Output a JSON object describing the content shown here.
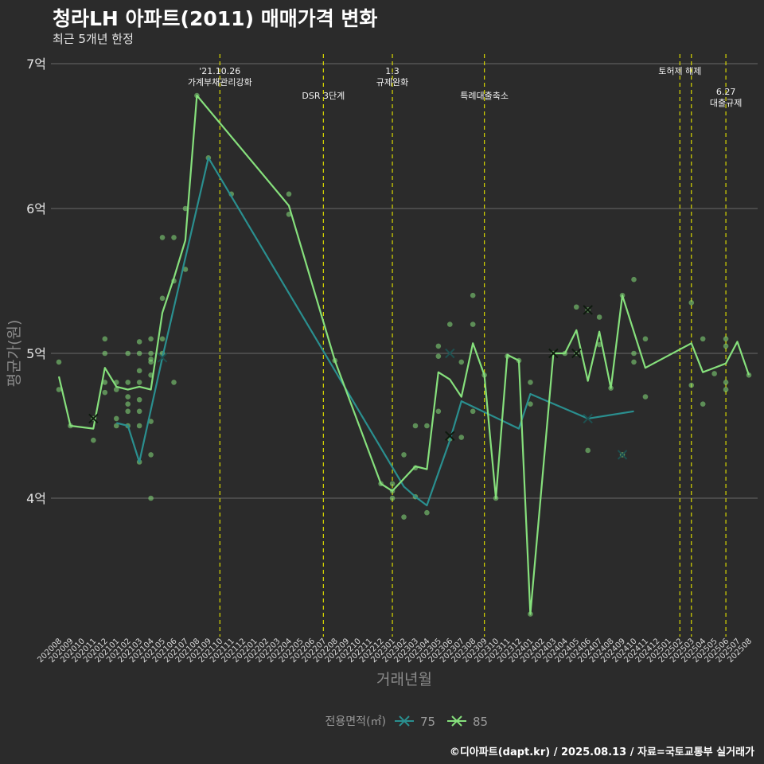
{
  "title": "청라LH 아파트(2011) 매매가격 변화",
  "subtitle": "최근 5개년 한정",
  "caption": "©디아파트(dapt.kr) / 2025.08.13 / 자료=국토교통부 실거래가",
  "colors": {
    "background": "#2b2b2b",
    "grid": "#6a6a6a",
    "event_line": "#d8d800",
    "series_75": "#2a8f8f",
    "series_85": "#86e07c"
  },
  "chart_data": {
    "type": "line",
    "xlabel": "거래년월",
    "ylabel": "평균가(원)",
    "yticks": [
      {
        "value": 4,
        "label": "4억"
      },
      {
        "value": 5,
        "label": "5억"
      },
      {
        "value": 6,
        "label": "6억"
      },
      {
        "value": 7,
        "label": "7억"
      }
    ],
    "ylim": [
      3.1,
      7.05
    ],
    "ytick_unit": "억",
    "x": [
      "202008",
      "202009",
      "202010",
      "202011",
      "202012",
      "202101",
      "202102",
      "202103",
      "202104",
      "202105",
      "202106",
      "202107",
      "202108",
      "202109",
      "202110",
      "202111",
      "202112",
      "202201",
      "202202",
      "202203",
      "202204",
      "202205",
      "202206",
      "202207",
      "202208",
      "202209",
      "202210",
      "202211",
      "202212",
      "202301",
      "202302",
      "202303",
      "202304",
      "202305",
      "202306",
      "202307",
      "202308",
      "202309",
      "202310",
      "202311",
      "202312",
      "202401",
      "202402",
      "202403",
      "202404",
      "202405",
      "202406",
      "202407",
      "202408",
      "202409",
      "202410",
      "202411",
      "202412",
      "202501",
      "202502",
      "202503",
      "202504",
      "202505",
      "202506",
      "202507",
      "202508"
    ],
    "legend": {
      "title": "전용면적(㎡)",
      "position": "bottom"
    },
    "series": [
      {
        "name": "75",
        "color": "#2a8f8f",
        "points": [
          [
            "202101",
            4.52
          ],
          [
            "202102",
            4.5
          ],
          [
            "202103",
            4.25
          ],
          [
            "202105",
            4.97
          ],
          [
            "202109",
            6.35
          ],
          [
            "202302",
            4.08
          ],
          [
            "202303",
            4.01
          ],
          [
            "202304",
            3.95
          ],
          [
            "202306",
            4.4
          ],
          [
            "202307",
            4.67
          ],
          [
            "202312",
            4.48
          ],
          [
            "202401",
            4.72
          ],
          [
            "202406",
            4.55
          ],
          [
            "202410",
            4.6
          ]
        ]
      },
      {
        "name": "85",
        "color": "#86e07c",
        "points": [
          [
            "202008",
            4.84
          ],
          [
            "202009",
            4.5
          ],
          [
            "202011",
            4.48
          ],
          [
            "202012",
            4.9
          ],
          [
            "202101",
            4.77
          ],
          [
            "202102",
            4.75
          ],
          [
            "202103",
            4.77
          ],
          [
            "202104",
            4.75
          ],
          [
            "202105",
            5.28
          ],
          [
            "202106",
            5.52
          ],
          [
            "202107",
            5.78
          ],
          [
            "202108",
            6.78
          ],
          [
            "202204",
            6.02
          ],
          [
            "202208",
            4.95
          ],
          [
            "202212",
            4.1
          ],
          [
            "202301",
            4.05
          ],
          [
            "202303",
            4.22
          ],
          [
            "202304",
            4.2
          ],
          [
            "202305",
            4.87
          ],
          [
            "202306",
            4.82
          ],
          [
            "202307",
            4.7
          ],
          [
            "202308",
            5.07
          ],
          [
            "202309",
            4.85
          ],
          [
            "202310",
            4.0
          ],
          [
            "202311",
            4.99
          ],
          [
            "202312",
            4.95
          ],
          [
            "202401",
            3.2
          ],
          [
            "202403",
            5.0
          ],
          [
            "202404",
            5.0
          ],
          [
            "202405",
            5.16
          ],
          [
            "202406",
            4.81
          ],
          [
            "202407",
            5.15
          ],
          [
            "202408",
            4.76
          ],
          [
            "202409",
            5.4
          ],
          [
            "202411",
            4.9
          ],
          [
            "202503",
            5.07
          ],
          [
            "202504",
            4.87
          ],
          [
            "202506",
            4.93
          ],
          [
            "202507",
            5.08
          ],
          [
            "202508",
            4.85
          ]
        ]
      }
    ],
    "transactions": [
      [
        "202008",
        4.94
      ],
      [
        "202008",
        4.75
      ],
      [
        "202009",
        4.5
      ],
      [
        "202011",
        4.4
      ],
      [
        "202011",
        4.55
      ],
      [
        "202012",
        5.1
      ],
      [
        "202012",
        5.0
      ],
      [
        "202012",
        4.8
      ],
      [
        "202012",
        4.73
      ],
      [
        "202101",
        4.8
      ],
      [
        "202101",
        4.75
      ],
      [
        "202101",
        4.55
      ],
      [
        "202101",
        4.5
      ],
      [
        "202102",
        5.0
      ],
      [
        "202102",
        4.8
      ],
      [
        "202102",
        4.7
      ],
      [
        "202102",
        4.65
      ],
      [
        "202102",
        4.6
      ],
      [
        "202102",
        4.5
      ],
      [
        "202103",
        5.08
      ],
      [
        "202103",
        5.0
      ],
      [
        "202103",
        4.88
      ],
      [
        "202103",
        4.8
      ],
      [
        "202103",
        4.68
      ],
      [
        "202103",
        4.6
      ],
      [
        "202103",
        4.5
      ],
      [
        "202103",
        4.25
      ],
      [
        "202104",
        5.1
      ],
      [
        "202104",
        5.0
      ],
      [
        "202104",
        4.96
      ],
      [
        "202104",
        4.94
      ],
      [
        "202104",
        4.85
      ],
      [
        "202104",
        4.53
      ],
      [
        "202104",
        4.3
      ],
      [
        "202104",
        4.0
      ],
      [
        "202105",
        5.8
      ],
      [
        "202105",
        5.38
      ],
      [
        "202105",
        5.1
      ],
      [
        "202105",
        5.0
      ],
      [
        "202106",
        5.8
      ],
      [
        "202106",
        5.5
      ],
      [
        "202106",
        4.8
      ],
      [
        "202107",
        6.0
      ],
      [
        "202107",
        5.58
      ],
      [
        "202108",
        6.78
      ],
      [
        "202109",
        6.35
      ],
      [
        "202111",
        6.1
      ],
      [
        "202204",
        6.1
      ],
      [
        "202204",
        5.96
      ],
      [
        "202208",
        4.95
      ],
      [
        "202212",
        4.1
      ],
      [
        "202301",
        4.1
      ],
      [
        "202301",
        4.05
      ],
      [
        "202301",
        4.0
      ],
      [
        "202302",
        4.3
      ],
      [
        "202302",
        3.87
      ],
      [
        "202303",
        4.5
      ],
      [
        "202303",
        4.21
      ],
      [
        "202303",
        4.01
      ],
      [
        "202304",
        4.5
      ],
      [
        "202304",
        3.9
      ],
      [
        "202305",
        5.05
      ],
      [
        "202305",
        4.98
      ],
      [
        "202305",
        4.6
      ],
      [
        "202306",
        5.2
      ],
      [
        "202306",
        4.41
      ],
      [
        "202307",
        4.94
      ],
      [
        "202307",
        4.42
      ],
      [
        "202308",
        5.4
      ],
      [
        "202308",
        5.2
      ],
      [
        "202308",
        4.6
      ],
      [
        "202309",
        4.85
      ],
      [
        "202310",
        4.0
      ],
      [
        "202311",
        4.98
      ],
      [
        "202312",
        4.95
      ],
      [
        "202401",
        4.8
      ],
      [
        "202401",
        4.65
      ],
      [
        "202401",
        3.2
      ],
      [
        "202403",
        5.0
      ],
      [
        "202404",
        5.0
      ],
      [
        "202405",
        5.32
      ],
      [
        "202405",
        5.0
      ],
      [
        "202406",
        5.3
      ],
      [
        "202406",
        4.33
      ],
      [
        "202407",
        5.25
      ],
      [
        "202407",
        5.06
      ],
      [
        "202408",
        4.76
      ],
      [
        "202409",
        5.4
      ],
      [
        "202409",
        4.3
      ],
      [
        "202410",
        5.51
      ],
      [
        "202410",
        5.0
      ],
      [
        "202410",
        4.94
      ],
      [
        "202411",
        5.1
      ],
      [
        "202411",
        4.7
      ],
      [
        "202503",
        5.35
      ],
      [
        "202503",
        4.78
      ],
      [
        "202504",
        5.1
      ],
      [
        "202504",
        4.65
      ],
      [
        "202505",
        4.86
      ],
      [
        "202506",
        5.1
      ],
      [
        "202506",
        5.05
      ],
      [
        "202506",
        4.8
      ],
      [
        "202506",
        4.75
      ],
      [
        "202508",
        4.85
      ]
    ],
    "highlight_marks": [
      [
        "202011",
        4.55,
        "85"
      ],
      [
        "202105",
        4.97,
        "75"
      ],
      [
        "202306",
        5.0,
        "75"
      ],
      [
        "202306",
        4.43,
        "85"
      ],
      [
        "202403",
        5.0,
        "85"
      ],
      [
        "202405",
        5.0,
        "85"
      ],
      [
        "202406",
        5.3,
        "85"
      ],
      [
        "202406",
        4.55,
        "75"
      ],
      [
        "202409",
        4.3,
        "75"
      ]
    ],
    "events": [
      {
        "x": "202110",
        "label": "'21.10.26\n가계부채관리강화",
        "row": 0
      },
      {
        "x": "202207",
        "label": "DSR 3단계",
        "row": 1
      },
      {
        "x": "202301",
        "label": "1.3\n규제완화",
        "row": 0
      },
      {
        "x": "202309",
        "label": "특례대출축소",
        "row": 1
      },
      {
        "x": "202502",
        "label": "토허제 해제",
        "row": 0
      },
      {
        "x": "202503",
        "label": "",
        "row": 0
      },
      {
        "x": "202506",
        "label": "6.27\n대출규제",
        "row": 1
      }
    ]
  }
}
